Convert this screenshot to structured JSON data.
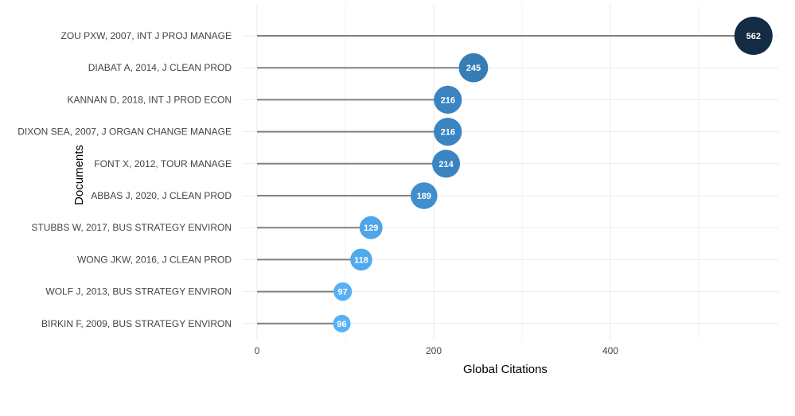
{
  "chart_data": {
    "type": "lollipop",
    "title": "",
    "xlabel": "Global Citations",
    "ylabel": "Documents",
    "xlim": [
      0,
      590
    ],
    "x_ticks": [
      0,
      200,
      400
    ],
    "grid": true,
    "categories": [
      "ZOU PXW, 2007, INT J PROJ MANAGE",
      "DIABAT A, 2014, J CLEAN PROD",
      "KANNAN D, 2018, INT J PROD ECON",
      "DIXON SEA, 2007, J ORGAN CHANGE MANAGE",
      "FONT X, 2012, TOUR MANAGE",
      "ABBAS J, 2020, J CLEAN PROD",
      "STUBBS W, 2017, BUS STRATEGY ENVIRON",
      "WONG JKW, 2016, J CLEAN PROD",
      "WOLF J, 2013, BUS STRATEGY ENVIRON",
      "BIRKIN F, 2009, BUS STRATEGY ENVIRON"
    ],
    "values": [
      562,
      245,
      216,
      216,
      214,
      189,
      129,
      118,
      97,
      96
    ],
    "stem_color": "#808080",
    "color_scale": {
      "low": "#56b1f7",
      "mid": "#3a85c2",
      "high": "#132b43"
    }
  }
}
